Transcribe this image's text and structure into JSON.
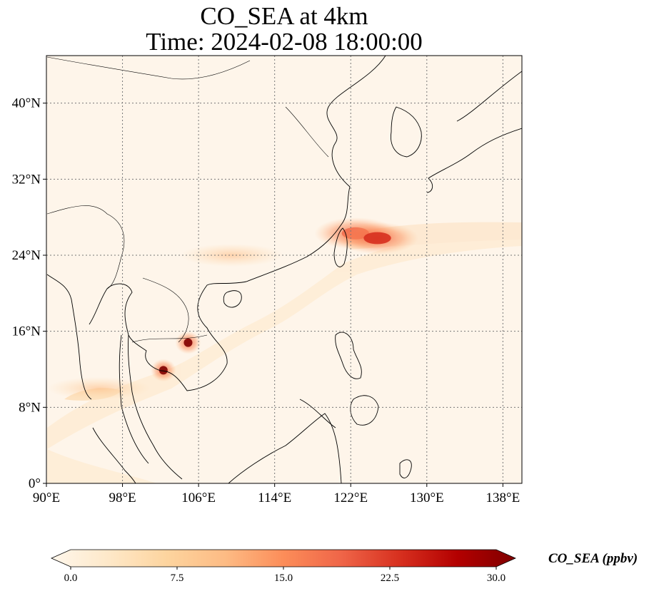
{
  "chart_data": {
    "type": "heatmap",
    "title": "CO_SEA at 4km",
    "subtitle": "Time: 2024-02-08 18:00:00",
    "x_ticks": [
      "90°E",
      "98°E",
      "106°E",
      "114°E",
      "122°E",
      "130°E",
      "138°E"
    ],
    "y_ticks": [
      "0°",
      "8°N",
      "16°N",
      "24°N",
      "32°N",
      "40°N"
    ],
    "x_tick_values": [
      90,
      98,
      106,
      114,
      122,
      130,
      138
    ],
    "y_tick_values": [
      0,
      8,
      16,
      24,
      32,
      40
    ],
    "xlim": [
      90,
      140
    ],
    "ylim": [
      0,
      45
    ],
    "grid": true,
    "colorbar": {
      "label": "CO_SEA (ppbv)",
      "ticks": [
        "0.0",
        "7.5",
        "15.0",
        "22.5",
        "30.0"
      ],
      "tick_values": [
        0,
        7.5,
        15,
        22.5,
        30
      ],
      "range": [
        0,
        30
      ],
      "colormap": [
        "#fff7ec",
        "#fee8c8",
        "#fdd49e",
        "#fdbb84",
        "#fc8d59",
        "#ef6548",
        "#d7301f",
        "#b30000",
        "#7f0000"
      ]
    },
    "hotspots": [
      {
        "lon": 104.9,
        "lat": 14.8,
        "value": 30
      },
      {
        "lon": 102.3,
        "lat": 11.9,
        "value": 30
      },
      {
        "lon": 122.5,
        "lat": 26.3,
        "value": 20
      },
      {
        "lon": 124.8,
        "lat": 25.8,
        "value": 22
      },
      {
        "lon": 109.5,
        "lat": 24.0,
        "value": 5
      },
      {
        "lon": 95.5,
        "lat": 10.0,
        "value": 6
      }
    ]
  }
}
